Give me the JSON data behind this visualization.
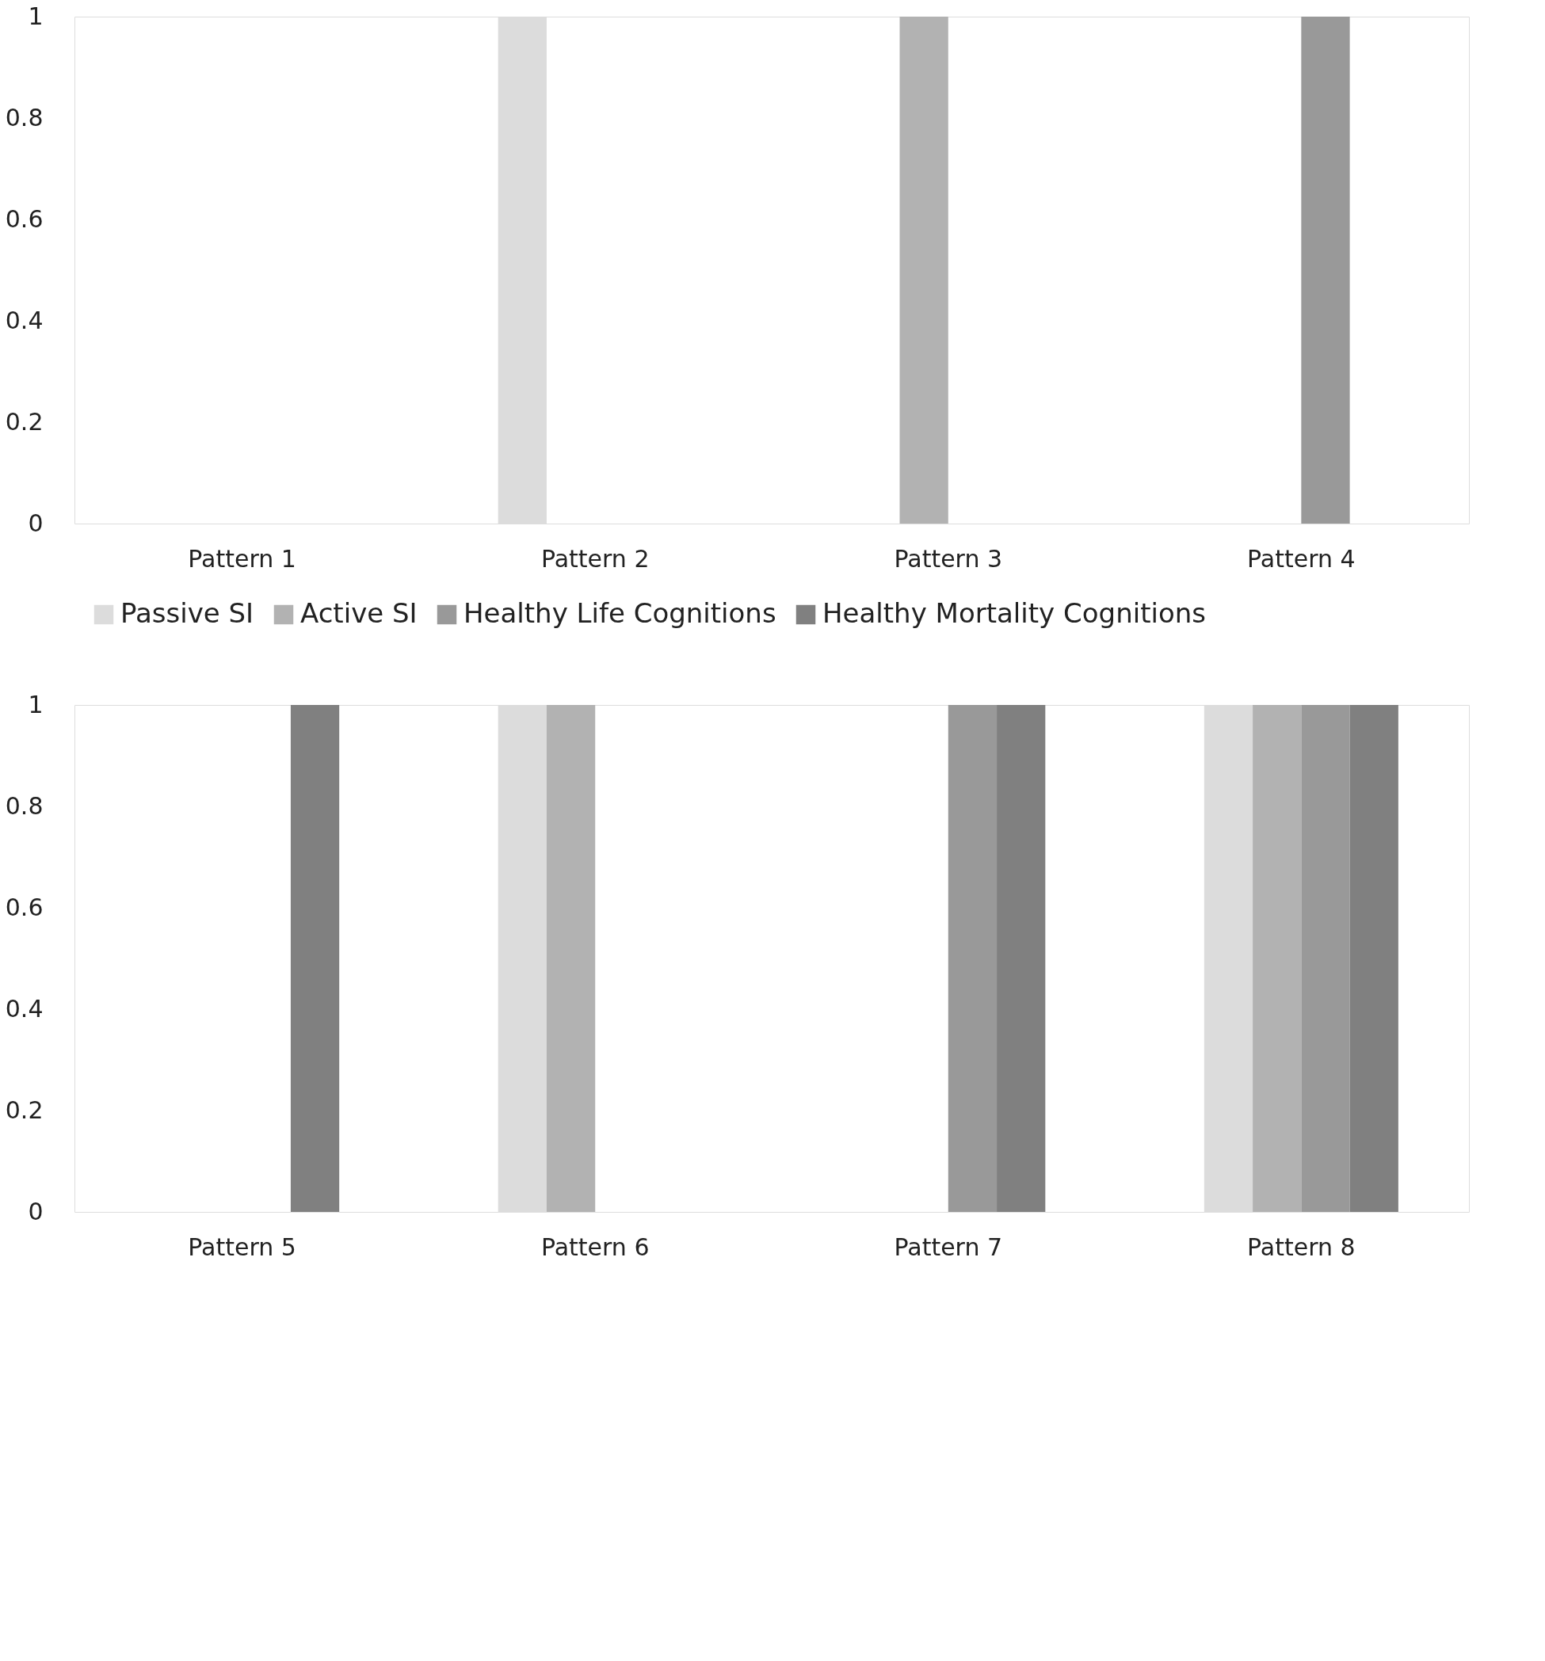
{
  "chart_data": [
    {
      "type": "bar",
      "categories": [
        "Pattern 1",
        "Pattern 2",
        "Pattern 3",
        "Pattern 4"
      ],
      "ylim": [
        0,
        1
      ],
      "yticks": [
        0,
        0.2,
        0.4,
        0.6,
        0.8,
        1
      ],
      "grid": false,
      "legend": "bottom",
      "series": [
        {
          "name": "Passive SI",
          "color": "#dcdcdc",
          "values": [
            0,
            1,
            0,
            0
          ]
        },
        {
          "name": "Active SI",
          "color": "#b2b2b2",
          "values": [
            0,
            0,
            1,
            0
          ]
        },
        {
          "name": "Healthy Life Cognitions",
          "color": "#999999",
          "values": [
            0,
            0,
            0,
            1
          ]
        },
        {
          "name": "Healthy Mortality Cognitions",
          "color": "#808080",
          "values": [
            0,
            0,
            0,
            0
          ]
        }
      ]
    },
    {
      "type": "bar",
      "categories": [
        "Pattern 5",
        "Pattern 6",
        "Pattern 7",
        "Pattern 8"
      ],
      "ylim": [
        0,
        1
      ],
      "yticks": [
        0,
        0.2,
        0.4,
        0.6,
        0.8,
        1
      ],
      "grid": false,
      "legend": false,
      "series": [
        {
          "color": "#dcdcdc",
          "values": [
            0,
            1,
            0,
            1
          ]
        },
        {
          "color": "#b2b2b2",
          "values": [
            0,
            1,
            0,
            1
          ]
        },
        {
          "color": "#999999",
          "values": [
            0,
            0,
            1,
            1
          ]
        },
        {
          "color": "#808080",
          "values": [
            1,
            0,
            1,
            1
          ]
        }
      ]
    }
  ]
}
